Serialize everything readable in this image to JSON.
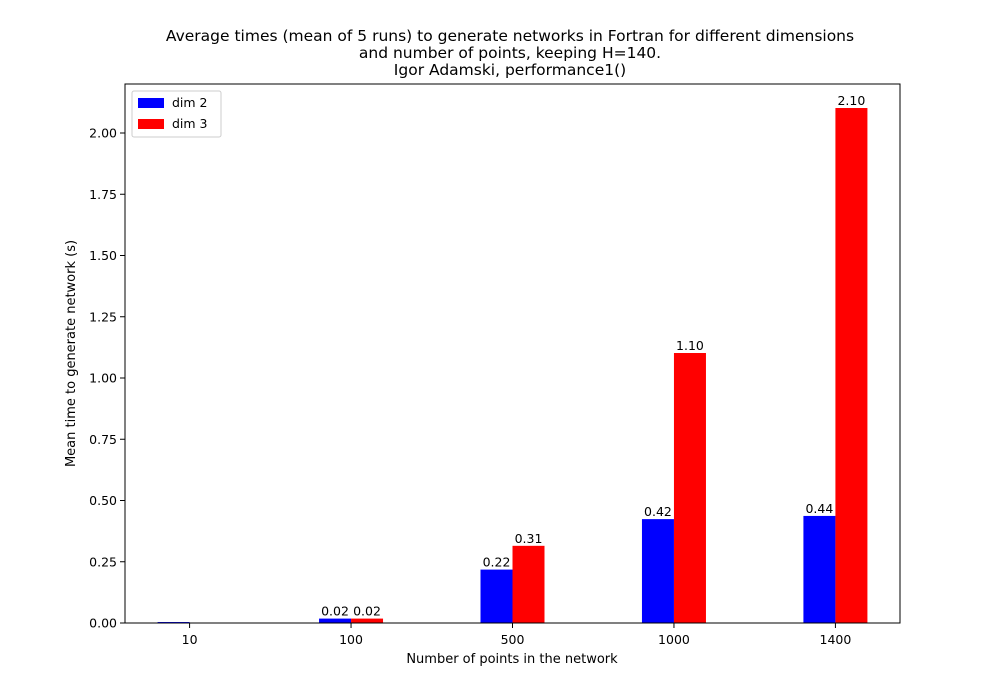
{
  "chart_data": {
    "type": "bar",
    "title": [
      "Average times (mean of 5 runs) to generate networks in Fortran for different dimensions",
      "and number of points, keeping H=140.",
      "Igor Adamski, performance1()"
    ],
    "xlabel": "Number of points in the network",
    "ylabel": "Mean time to generate network (s)",
    "categories": [
      "10",
      "100",
      "500",
      "1000",
      "1400"
    ],
    "series": [
      {
        "name": "dim 2",
        "color": "#0000ff",
        "values": [
          0.004,
          0.018,
          0.218,
          0.424,
          0.437
        ],
        "labels": [
          "",
          "0.02",
          "0.22",
          "0.42",
          "0.44"
        ]
      },
      {
        "name": "dim 3",
        "color": "#ff0000",
        "values": [
          0.0,
          0.018,
          0.315,
          1.102,
          2.102
        ],
        "labels": [
          "",
          "0.02",
          "0.31",
          "1.10",
          "2.10"
        ]
      }
    ],
    "ylim": [
      0,
      2.2
    ],
    "yticks": [
      "0.00",
      "0.25",
      "0.50",
      "0.75",
      "1.00",
      "1.25",
      "1.50",
      "1.75",
      "2.00"
    ],
    "grid": false,
    "legend_position": "top-left"
  }
}
